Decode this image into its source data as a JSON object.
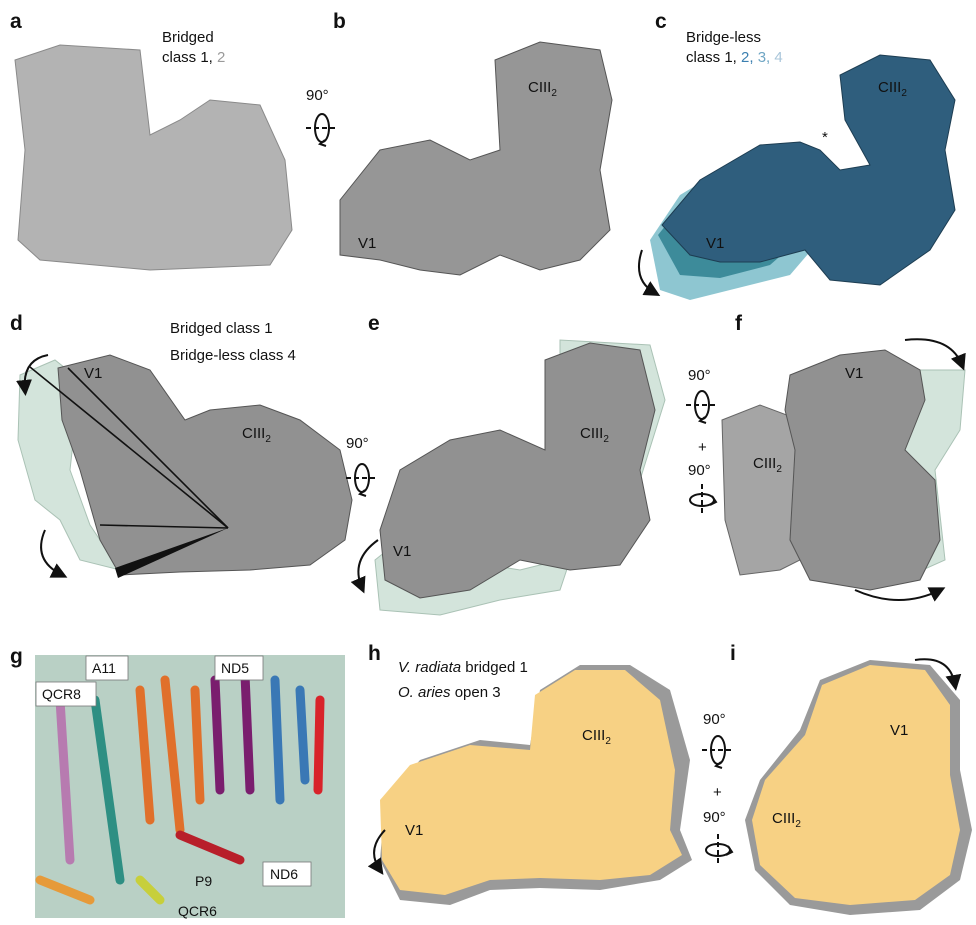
{
  "a": {
    "letter": "a",
    "legend_line1": "Bridged",
    "legend_line2": "class 1,",
    "legend_class2": "2"
  },
  "ab_rotation": "90°",
  "b": {
    "letter": "b",
    "ciii": "CIII",
    "ciii_sub": "2",
    "v1": "V1"
  },
  "c": {
    "letter": "c",
    "legend_line1": "Bridge-less",
    "legend_line2": "class 1,",
    "class2": "2,",
    "class3": "3,",
    "class4": "4",
    "asterisk": "*",
    "ciii": "CIII",
    "ciii_sub": "2",
    "v1": "V1"
  },
  "d": {
    "letter": "d",
    "legend_line1": "Bridged class 1",
    "legend_line2": "Bridge-less class 4",
    "v1": "V1",
    "ciii": "CIII",
    "ciii_sub": "2"
  },
  "de_rotation": "90°",
  "e": {
    "letter": "e",
    "ciii": "CIII",
    "ciii_sub": "2",
    "v1": "V1"
  },
  "ef_rotation": {
    "top": "90°",
    "plus": "+",
    "bottom": "90°"
  },
  "f": {
    "letter": "f",
    "v1": "V1",
    "ciii": "CIII",
    "ciii_sub": "2"
  },
  "g": {
    "letter": "g",
    "a11": "A11",
    "nd5": "ND5",
    "qcr8": "QCR8",
    "nd6": "ND6",
    "p9": "P9",
    "qcr6": "QCR6"
  },
  "h": {
    "letter": "h",
    "legend1_species": "V. radiata",
    "legend1_rest": "bridged 1",
    "legend2_species": "O. aries",
    "legend2_rest": "open 3",
    "ciii": "CIII",
    "ciii_sub": "2",
    "v1": "V1"
  },
  "hi_rotation": {
    "top": "90°",
    "plus": "+",
    "bottom": "90°"
  },
  "i": {
    "letter": "i",
    "v1": "V1",
    "ciii": "CIII",
    "ciii_sub": "2"
  }
}
